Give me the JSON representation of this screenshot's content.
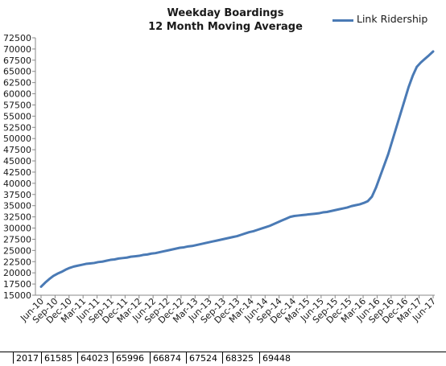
{
  "chart_data": {
    "type": "line",
    "title": "Weekday Boardings",
    "subtitle": "12 Month Moving Average",
    "xlabel": "",
    "ylabel": "",
    "ylim": [
      15000,
      72500
    ],
    "ytick_step": 2500,
    "grid": false,
    "legend": "top-right",
    "x_tick_labels": [
      "Jun-10",
      "Sep-10",
      "Dec-10",
      "Mar-11",
      "Jun-11",
      "Sep-11",
      "Dec-11",
      "Mar-12",
      "Jun-12",
      "Sep-12",
      "Dec-12",
      "Mar-13",
      "Jun-13",
      "Sep-13",
      "Dec-13",
      "Mar-14",
      "Jun-14",
      "Sep-14",
      "Dec-14",
      "Mar-15",
      "Jun-15",
      "Sep-15",
      "Dec-15",
      "Mar-16",
      "Jun-16",
      "Sep-16",
      "Dec-16",
      "Mar-17",
      "Jun-17"
    ],
    "series": [
      {
        "name": "Link Ridership",
        "color": "#4a7ab5",
        "values": [
          16900,
          17800,
          18600,
          19300,
          19800,
          20200,
          20700,
          21100,
          21400,
          21600,
          21800,
          22000,
          22100,
          22200,
          22400,
          22500,
          22700,
          22900,
          23000,
          23200,
          23300,
          23400,
          23600,
          23700,
          23800,
          24000,
          24100,
          24300,
          24400,
          24600,
          24800,
          25000,
          25200,
          25400,
          25600,
          25700,
          25900,
          26000,
          26200,
          26400,
          26600,
          26800,
          27000,
          27200,
          27400,
          27600,
          27800,
          28000,
          28200,
          28500,
          28800,
          29100,
          29300,
          29600,
          29900,
          30200,
          30500,
          30900,
          31300,
          31700,
          32100,
          32500,
          32700,
          32800,
          32900,
          33000,
          33100,
          33200,
          33300,
          33500,
          33600,
          33800,
          34000,
          34200,
          34400,
          34600,
          34900,
          35100,
          35300,
          35600,
          36000,
          37000,
          39000,
          41500,
          44000,
          46500,
          49500,
          52500,
          55500,
          58500,
          61500,
          64000,
          66000,
          67000,
          67800,
          68600,
          69448
        ]
      }
    ]
  },
  "table_strip": [
    "2017",
    "61585",
    "64023",
    "65996",
    "66874",
    "67524",
    "68325",
    "69448"
  ]
}
